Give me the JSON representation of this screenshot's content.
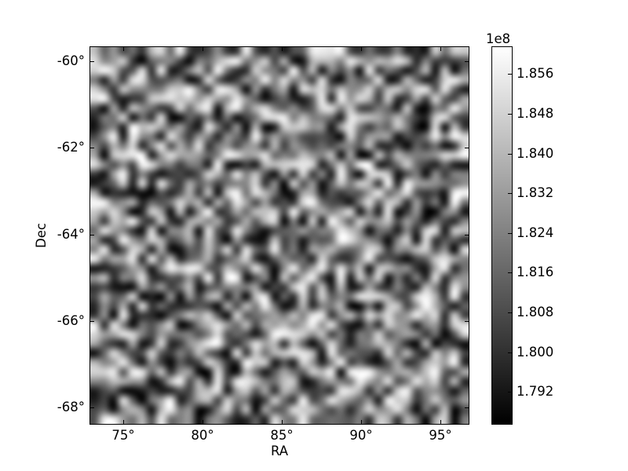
{
  "figure": {
    "background": "#ffffff",
    "text_color": "#000000",
    "spine_color": "#000000"
  },
  "axes": {
    "xlabel": "RA",
    "ylabel": "Dec",
    "xlim": [
      72.9,
      96.8
    ],
    "ylim": [
      -68.38,
      -59.67
    ],
    "xticks": [
      {
        "value": 75,
        "label": "75°"
      },
      {
        "value": 80,
        "label": "80°"
      },
      {
        "value": 85,
        "label": "85°"
      },
      {
        "value": 90,
        "label": "90°"
      },
      {
        "value": 95,
        "label": "95°"
      }
    ],
    "yticks": [
      {
        "value": -60,
        "label": "-60°"
      },
      {
        "value": -62,
        "label": "-62°"
      },
      {
        "value": -64,
        "label": "-64°"
      },
      {
        "value": -66,
        "label": "-66°"
      },
      {
        "value": -68,
        "label": "-68°"
      }
    ]
  },
  "colorbar": {
    "offset_label": "1e8",
    "vmin": 178560000,
    "vmax": 186140000,
    "colormap": "gray",
    "color_top": "#ffffff",
    "color_bottom": "#000000",
    "ticks": [
      {
        "value": 185600000,
        "label": "1.856"
      },
      {
        "value": 184800000,
        "label": "1.848"
      },
      {
        "value": 184000000,
        "label": "1.840"
      },
      {
        "value": 183200000,
        "label": "1.832"
      },
      {
        "value": 182400000,
        "label": "1.824"
      },
      {
        "value": 181600000,
        "label": "1.816"
      },
      {
        "value": 180800000,
        "label": "1.808"
      },
      {
        "value": 180000000,
        "label": "1.800"
      },
      {
        "value": 179200000,
        "label": "1.792"
      }
    ]
  },
  "chart_data": {
    "type": "heatmap",
    "title": "",
    "xlabel": "RA",
    "ylabel": "Dec",
    "x_range_deg": [
      72.9,
      96.8
    ],
    "y_range_deg": [
      -68.38,
      -59.67
    ],
    "x_tick_values_deg": [
      75,
      80,
      85,
      90,
      95
    ],
    "y_tick_values_deg": [
      -60,
      -62,
      -64,
      -66,
      -68
    ],
    "value_range": [
      178560000,
      186140000
    ],
    "value_scale_label": "1e8",
    "colorbar_tick_values": [
      185600000,
      184800000,
      184000000,
      183200000,
      182400000,
      181600000,
      180800000,
      180000000,
      179200000
    ],
    "colormap": "gray",
    "grid_shape": [
      40,
      40
    ],
    "interpolation": "bilinear",
    "values_description": "unlabeled smoothed random noise field spanning the full value range",
    "noise_seed": 20,
    "legend": "none",
    "grid_lines": "off"
  }
}
